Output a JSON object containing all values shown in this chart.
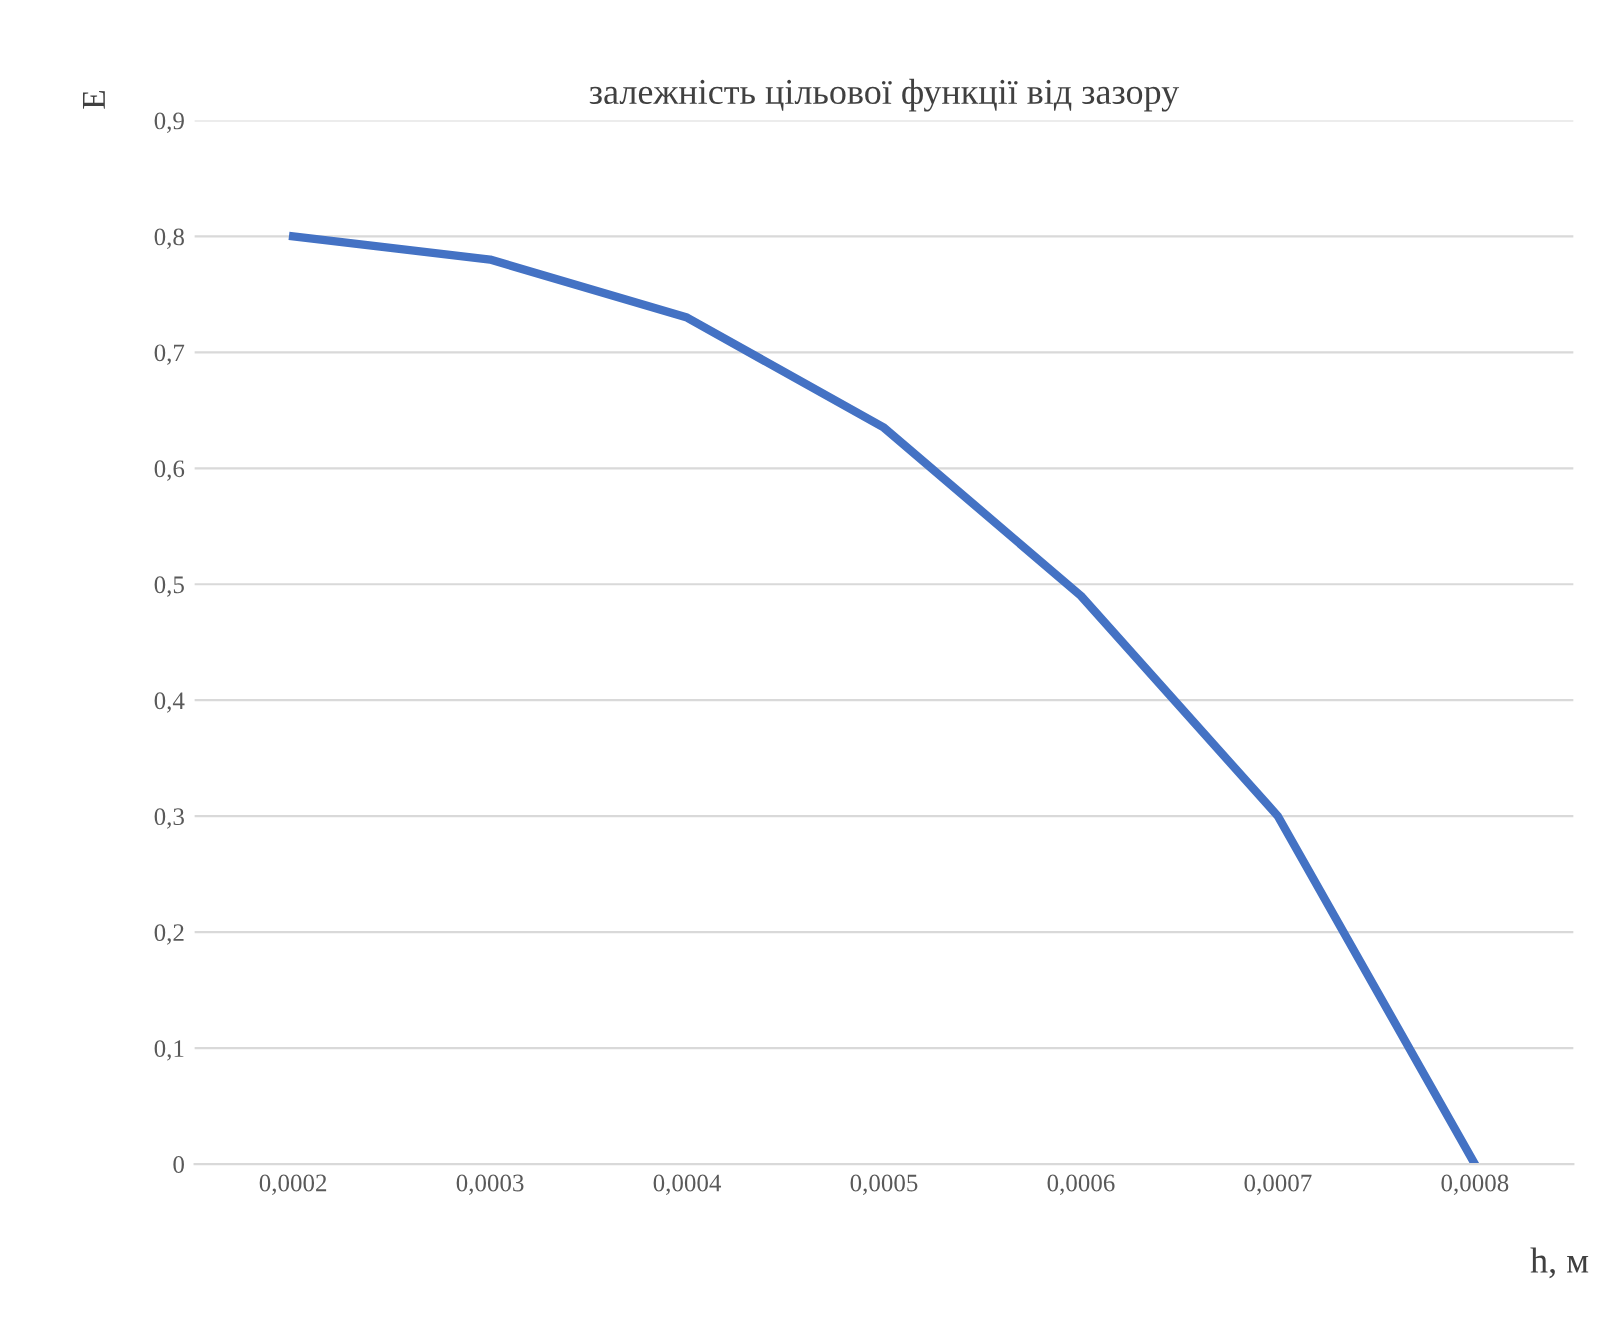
{
  "chart_data": {
    "type": "line",
    "title": "залежність цільової функції від зазору",
    "ylabel": "E",
    "xlabel": "h, м",
    "categories": [
      "0,0002",
      "0,0003",
      "0,0004",
      "0,0005",
      "0,0006",
      "0,0007",
      "0,0008"
    ],
    "series": [
      {
        "color": "#4472c4",
        "values": [
          0.8,
          0.78,
          0.73,
          0.635,
          0.49,
          0.3,
          0
        ]
      }
    ],
    "ylim": [
      0,
      0.9
    ],
    "yticks": [
      {
        "value": 0,
        "label": "0"
      },
      {
        "value": 0.1,
        "label": "0,1"
      },
      {
        "value": 0.2,
        "label": "0,2"
      },
      {
        "value": 0.3,
        "label": "0,3"
      },
      {
        "value": 0.4,
        "label": "0,4"
      },
      {
        "value": 0.5,
        "label": "0,5"
      },
      {
        "value": 0.6,
        "label": "0,6"
      },
      {
        "value": 0.7,
        "label": "0,7"
      },
      {
        "value": 0.8,
        "label": "0,8"
      },
      {
        "value": 0.9,
        "label": "0,9"
      }
    ],
    "grid": "y",
    "marker": "none",
    "line_style": "solid"
  }
}
